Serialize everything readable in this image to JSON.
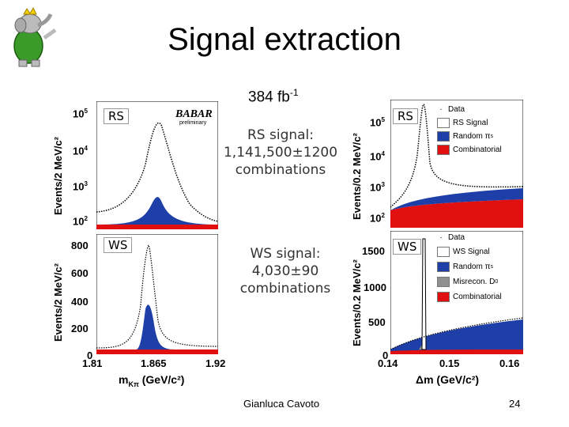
{
  "slide": {
    "title": "Signal extraction",
    "luminosity": "384 fb",
    "luminosity_exp": "-1",
    "author": "Gianluca Cavoto",
    "page": "24"
  },
  "annotations": {
    "rs_signal_l1": "RS signal:",
    "rs_signal_l2": "1,141,500±1200",
    "rs_signal_l3": "combinations",
    "ws_signal_l1": "WS signal:",
    "ws_signal_l2": "4,030±90",
    "ws_signal_l3": "combinations",
    "babar": "BABAR",
    "preliminary": "preliminary"
  },
  "panels": {
    "rs_tag": "RS",
    "ws_tag": "WS",
    "left_ylabel": "Events/2 MeV/c²",
    "right_ylabel": "Events/0.2 MeV/c²",
    "left_xlabel": "m",
    "left_xlabel_sub": "Kπ",
    "left_xlabel_unit": " (GeV/c²)",
    "right_xlabel": "Δm (GeV/c²)"
  },
  "ticks": {
    "left_x": [
      "1.81",
      "1.865",
      "1.92"
    ],
    "right_x": [
      "0.14",
      "0.15",
      "0.16"
    ],
    "rs_left_y": [
      "10",
      "10",
      "10",
      "10"
    ],
    "rs_left_y_exp": [
      "5",
      "4",
      "3",
      "2"
    ],
    "rs_right_y": [
      "10",
      "10",
      "10",
      "10"
    ],
    "rs_right_y_exp": [
      "5",
      "4",
      "3",
      "2"
    ],
    "ws_left_y": [
      "800",
      "600",
      "400",
      "200",
      "0"
    ],
    "ws_right_y": [
      "1500",
      "1000",
      "500",
      "0"
    ]
  },
  "legend": {
    "rs": [
      "Data",
      "RS Signal",
      "Random π",
      "Combinatorial"
    ],
    "rs_sub": [
      "",
      "",
      "s",
      ""
    ],
    "ws": [
      "Data",
      "WS Signal",
      "Random π",
      "Misrecon. D",
      "Combinatorial"
    ],
    "ws_sub": [
      "",
      "",
      "s",
      "0",
      ""
    ]
  },
  "colors": {
    "signal_white": "#ffffff",
    "random_pi": "#1f3fa8",
    "combinatorial": "#e01010",
    "misrecon": "#909090",
    "data": "#000000"
  },
  "chart_data": [
    {
      "type": "area",
      "name": "RS m_Kpi",
      "xlabel": "m_Kπ (GeV/c²)",
      "ylabel": "Events/2 MeV/c²",
      "xlim": [
        1.81,
        1.92
      ],
      "yscale": "log",
      "ylim": [
        100,
        100000
      ],
      "peak_x": 1.865
    },
    {
      "type": "area",
      "name": "RS delta m",
      "xlabel": "Δm (GeV/c²)",
      "ylabel": "Events/0.2 MeV/c²",
      "xlim": [
        0.14,
        0.16
      ],
      "yscale": "log",
      "ylim": [
        100,
        100000
      ],
      "peak_x": 0.1455
    },
    {
      "type": "area",
      "name": "WS m_Kpi",
      "xlabel": "m_Kπ (GeV/c²)",
      "ylabel": "Events/2 MeV/c²",
      "xlim": [
        1.81,
        1.92
      ],
      "ylim": [
        0,
        850
      ],
      "peak_x": 1.865,
      "peak_y": 790
    },
    {
      "type": "area",
      "name": "WS delta m",
      "xlabel": "Δm (GeV/c²)",
      "ylabel": "Events/0.2 MeV/c²",
      "xlim": [
        0.14,
        0.16
      ],
      "ylim": [
        0,
        1650
      ],
      "peak_x": 0.1455,
      "peak_y": 1550
    }
  ]
}
